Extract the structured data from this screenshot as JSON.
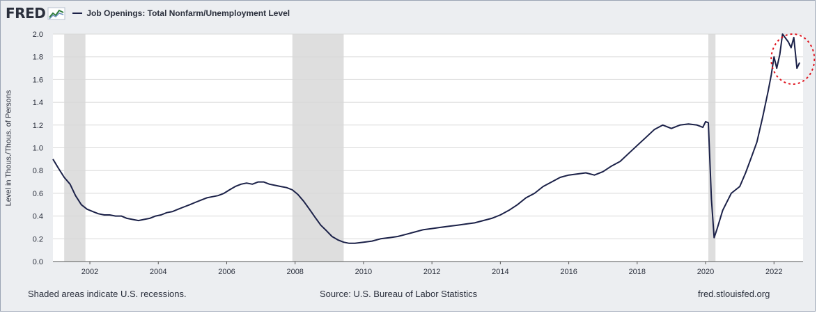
{
  "header": {
    "logo_text": "FRED",
    "legend_label": "Job Openings: Total Nonfarm/Unemployment Level"
  },
  "footer": {
    "recession_note": "Shaded areas indicate U.S. recessions.",
    "source": "Source: U.S. Bureau of Labor Statistics",
    "site": "fred.stlouisfed.org"
  },
  "colors": {
    "line": "#1b2148",
    "recession": "#dedede",
    "plot_bg": "#ffffff",
    "frame_bg": "#eceef1",
    "grid": "#d8d8d8",
    "highlight_circle": "#e0141e"
  },
  "chart_data": {
    "type": "line",
    "title": "",
    "xlabel": "",
    "ylabel": "Level in Thous./Thous. of Persons",
    "xlim": [
      2000.92,
      2022.85
    ],
    "ylim": [
      0.0,
      2.0
    ],
    "x_ticks": [
      2002,
      2004,
      2006,
      2008,
      2010,
      2012,
      2014,
      2016,
      2018,
      2020,
      2022
    ],
    "y_ticks": [
      0.0,
      0.2,
      0.4,
      0.6,
      0.8,
      1.0,
      1.2,
      1.4,
      1.6,
      1.8,
      2.0
    ],
    "y_tick_labels": [
      "0.0",
      "0.2",
      "0.4",
      "0.6",
      "0.8",
      "1.0",
      "1.2",
      "1.4",
      "1.6",
      "1.8",
      "2.0"
    ],
    "grid": true,
    "legend_position": "top-left",
    "recessions": [
      [
        2001.25,
        2001.87
      ],
      [
        2007.92,
        2009.42
      ],
      [
        2020.08,
        2020.29
      ]
    ],
    "annotation": "dashed red circle around 2022 peak",
    "series": [
      {
        "name": "Job Openings: Total Nonfarm/Unemployment Level",
        "x": [
          2000.92,
          2001.08,
          2001.25,
          2001.42,
          2001.58,
          2001.75,
          2001.92,
          2002.08,
          2002.25,
          2002.42,
          2002.58,
          2002.75,
          2002.92,
          2003.08,
          2003.25,
          2003.42,
          2003.58,
          2003.75,
          2003.92,
          2004.08,
          2004.25,
          2004.42,
          2004.58,
          2004.75,
          2004.92,
          2005.08,
          2005.25,
          2005.42,
          2005.58,
          2005.75,
          2005.92,
          2006.08,
          2006.25,
          2006.42,
          2006.58,
          2006.75,
          2006.92,
          2007.08,
          2007.25,
          2007.42,
          2007.58,
          2007.75,
          2007.92,
          2008.08,
          2008.25,
          2008.42,
          2008.58,
          2008.75,
          2008.92,
          2009.08,
          2009.25,
          2009.42,
          2009.58,
          2009.75,
          2010.0,
          2010.25,
          2010.5,
          2010.75,
          2011.0,
          2011.25,
          2011.5,
          2011.75,
          2012.0,
          2012.25,
          2012.5,
          2012.75,
          2013.0,
          2013.25,
          2013.5,
          2013.75,
          2014.0,
          2014.25,
          2014.5,
          2014.75,
          2015.0,
          2015.25,
          2015.5,
          2015.75,
          2016.0,
          2016.25,
          2016.5,
          2016.75,
          2017.0,
          2017.25,
          2017.5,
          2017.75,
          2018.0,
          2018.25,
          2018.5,
          2018.75,
          2019.0,
          2019.25,
          2019.5,
          2019.75,
          2019.92,
          2020.0,
          2020.08,
          2020.17,
          2020.25,
          2020.33,
          2020.5,
          2020.75,
          2021.0,
          2021.17,
          2021.33,
          2021.5,
          2021.67,
          2021.83,
          2021.92,
          2022.0,
          2022.08,
          2022.17,
          2022.25,
          2022.42,
          2022.5,
          2022.58,
          2022.67,
          2022.75
        ],
        "values": [
          0.9,
          0.82,
          0.74,
          0.68,
          0.58,
          0.5,
          0.46,
          0.44,
          0.42,
          0.41,
          0.41,
          0.4,
          0.4,
          0.38,
          0.37,
          0.36,
          0.37,
          0.38,
          0.4,
          0.41,
          0.43,
          0.44,
          0.46,
          0.48,
          0.5,
          0.52,
          0.54,
          0.56,
          0.57,
          0.58,
          0.6,
          0.63,
          0.66,
          0.68,
          0.69,
          0.68,
          0.7,
          0.7,
          0.68,
          0.67,
          0.66,
          0.65,
          0.63,
          0.59,
          0.53,
          0.46,
          0.39,
          0.32,
          0.27,
          0.22,
          0.19,
          0.17,
          0.16,
          0.16,
          0.17,
          0.18,
          0.2,
          0.21,
          0.22,
          0.24,
          0.26,
          0.28,
          0.29,
          0.3,
          0.31,
          0.32,
          0.33,
          0.34,
          0.36,
          0.38,
          0.41,
          0.45,
          0.5,
          0.56,
          0.6,
          0.66,
          0.7,
          0.74,
          0.76,
          0.77,
          0.78,
          0.76,
          0.79,
          0.84,
          0.88,
          0.95,
          1.02,
          1.09,
          1.16,
          1.2,
          1.17,
          1.2,
          1.21,
          1.2,
          1.18,
          1.23,
          1.22,
          0.55,
          0.21,
          0.28,
          0.45,
          0.6,
          0.66,
          0.78,
          0.91,
          1.05,
          1.27,
          1.5,
          1.64,
          1.8,
          1.7,
          1.82,
          2.0,
          1.93,
          1.88,
          1.97,
          1.7,
          1.75
        ]
      }
    ]
  }
}
